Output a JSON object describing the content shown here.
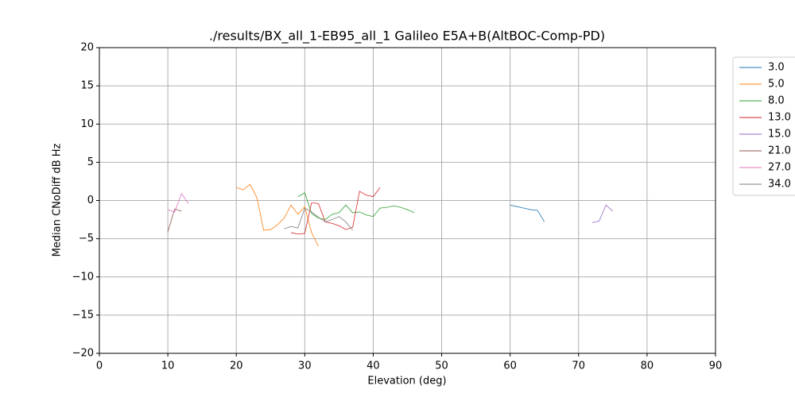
{
  "chart_data": {
    "type": "line",
    "title": "./results/BX_all_1-EB95_all_1 Galileo E5A+B(AltBOC-Comp-PD)",
    "xlabel": "Elevation (deg)",
    "ylabel": "Median CNoDiff dB Hz",
    "xlim": [
      0,
      90
    ],
    "ylim": [
      -20,
      20
    ],
    "xticks": [
      0,
      10,
      20,
      30,
      40,
      50,
      60,
      70,
      80,
      90
    ],
    "yticks": [
      {
        "value": -20,
        "label": "−20"
      },
      {
        "value": -15,
        "label": "−15"
      },
      {
        "value": -10,
        "label": "−10"
      },
      {
        "value": -5,
        "label": "−5"
      },
      0,
      5,
      10,
      15,
      20
    ],
    "grid": true,
    "legend": "outside upper right",
    "series": [
      {
        "name": "3.0",
        "color": "#1f77b4",
        "x": [
          60,
          61,
          62,
          63,
          64,
          65
        ],
        "values": [
          -0.6,
          -0.8,
          -1.0,
          -1.2,
          -1.3,
          -2.8
        ]
      },
      {
        "name": "5.0",
        "color": "#ff7f0e",
        "x": [
          20,
          21,
          22,
          23,
          24,
          25,
          26,
          27,
          28,
          29,
          30,
          31,
          32
        ],
        "values": [
          1.7,
          1.4,
          2.1,
          0.4,
          -3.9,
          -3.8,
          -3.2,
          -2.3,
          -0.6,
          -1.8,
          -0.8,
          -4.2,
          -6.0
        ]
      },
      {
        "name": "8.0",
        "color": "#2ca02c",
        "x": [
          29,
          30,
          31,
          32,
          33,
          34,
          35,
          36,
          37,
          38,
          39,
          40,
          41,
          42,
          43,
          44,
          45,
          46
        ],
        "values": [
          0.5,
          1.0,
          -1.7,
          -2.3,
          -2.5,
          -1.8,
          -1.6,
          -0.6,
          -1.6,
          -1.5,
          -1.9,
          -2.1,
          -1.0,
          -0.9,
          -0.7,
          -0.9,
          -1.2,
          -1.6
        ]
      },
      {
        "name": "13.0",
        "color": "#d62728",
        "x": [
          28,
          29,
          30,
          31,
          32,
          33,
          34,
          35,
          36,
          37,
          38,
          39,
          40,
          41
        ],
        "values": [
          -4.2,
          -4.4,
          -4.3,
          -0.3,
          -0.4,
          -2.8,
          -3.0,
          -3.3,
          -3.8,
          -3.5,
          1.2,
          0.7,
          0.5,
          1.7
        ]
      },
      {
        "name": "15.0",
        "color": "#9467bd",
        "x": [
          72,
          73,
          74,
          75
        ],
        "values": [
          -2.9,
          -2.7,
          -0.6,
          -1.4
        ]
      },
      {
        "name": "21.0",
        "color": "#8c564b",
        "x": [
          10,
          11,
          12
        ],
        "values": [
          -4.1,
          -1.1,
          -1.4
        ]
      },
      {
        "name": "27.0",
        "color": "#e377c2",
        "x": [
          10,
          11,
          12,
          13
        ],
        "values": [
          -1.2,
          -1.5,
          0.9,
          -0.4
        ]
      },
      {
        "name": "34.0",
        "color": "#7f7f7f",
        "x": [
          27,
          28,
          29,
          30,
          31,
          32,
          33,
          34,
          35,
          36,
          37
        ],
        "values": [
          -3.7,
          -3.4,
          -3.6,
          -1.0,
          -1.5,
          -2.2,
          -2.8,
          -2.5,
          -2.1,
          -2.8,
          -3.9
        ]
      }
    ]
  }
}
